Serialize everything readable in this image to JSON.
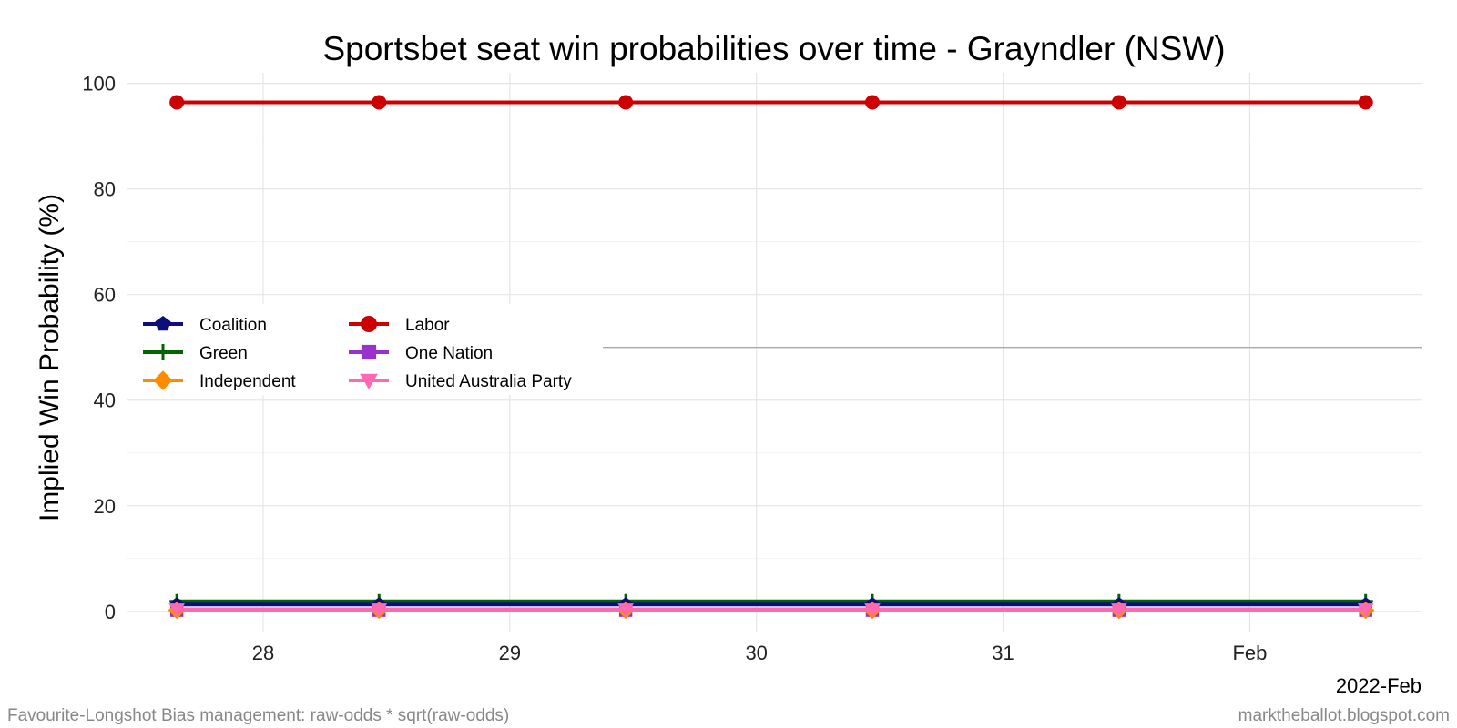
{
  "chart_data": {
    "type": "line",
    "title": "Sportsbet seat win probabilities over time - Grayndler (NSW)",
    "xlabel": "",
    "ylabel": "Implied Win Probability (%)",
    "x_period_label": "2022-Feb",
    "x_ticks": [
      {
        "label": "28",
        "value": 28
      },
      {
        "label": "29",
        "value": 29
      },
      {
        "label": "30",
        "value": 30
      },
      {
        "label": "31",
        "value": 31
      },
      {
        "label": "Feb",
        "value": 32
      }
    ],
    "xlim": [
      27.45,
      32.7
    ],
    "ylim": [
      -4,
      102
    ],
    "y_ticks": [
      0,
      20,
      40,
      60,
      80,
      100
    ],
    "reference_line_y": 50,
    "grid": true,
    "legend_position": "left-center",
    "x": [
      27.65,
      28.47,
      29.47,
      30.47,
      31.47,
      32.47
    ],
    "series": [
      {
        "name": "Coalition",
        "color": "#0d0d80",
        "marker": "pentagon",
        "values": [
          1.3,
          1.3,
          1.3,
          1.3,
          1.3,
          1.3
        ]
      },
      {
        "name": "Green",
        "color": "#006400",
        "marker": "plus",
        "values": [
          1.9,
          1.9,
          1.9,
          1.9,
          1.9,
          1.9
        ]
      },
      {
        "name": "Independent",
        "color": "#ff8c00",
        "marker": "diamond",
        "values": [
          0.2,
          0.2,
          0.2,
          0.2,
          0.2,
          0.2
        ]
      },
      {
        "name": "Labor",
        "color": "#cc0000",
        "marker": "circle",
        "values": [
          96.4,
          96.4,
          96.4,
          96.4,
          96.4,
          96.4
        ]
      },
      {
        "name": "One Nation",
        "color": "#9932cc",
        "marker": "square",
        "values": [
          0.2,
          0.2,
          0.2,
          0.2,
          0.2,
          0.2
        ]
      },
      {
        "name": "United Australia Party",
        "color": "#ff69b4",
        "marker": "triangle-down",
        "values": [
          0.4,
          0.4,
          0.4,
          0.4,
          0.4,
          0.4
        ]
      }
    ]
  },
  "footer": {
    "left": "Favourite-Longshot Bias management: raw-odds * sqrt(raw-odds)",
    "right": "marktheballot.blogspot.com"
  }
}
